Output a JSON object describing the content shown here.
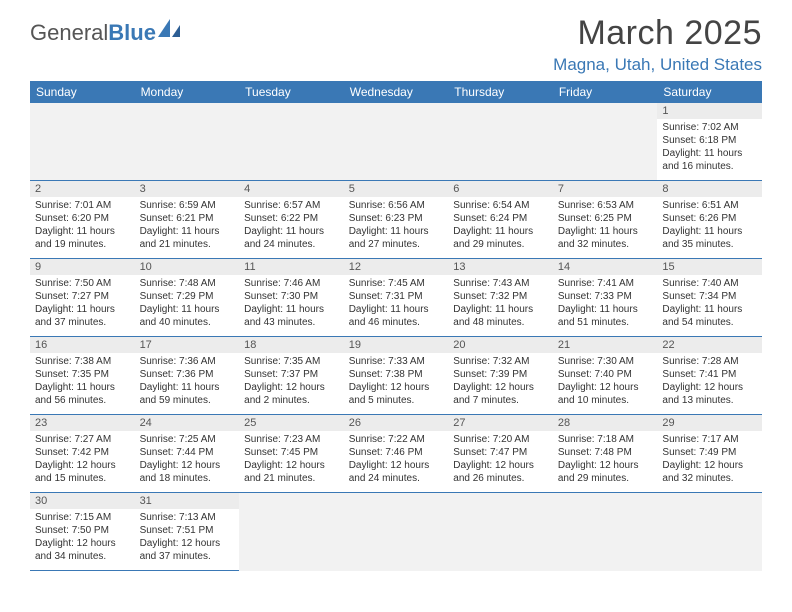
{
  "logo": {
    "text_general": "General",
    "text_blue": "Blue"
  },
  "title": "March 2025",
  "location": "Magna, Utah, United States",
  "weekdays": [
    "Sunday",
    "Monday",
    "Tuesday",
    "Wednesday",
    "Thursday",
    "Friday",
    "Saturday"
  ],
  "colors": {
    "header_bar": "#3a78b5",
    "header_text": "#ffffff",
    "cell_border": "#3a78b5",
    "daynum_bg": "#ececec",
    "blank_bg": "#f2f2f2",
    "body_text": "#333333",
    "title_text": "#444444",
    "location_text": "#3a78b5"
  },
  "typography": {
    "month_title_pt": 34,
    "location_pt": 17,
    "weekday_pt": 12,
    "daynum_pt": 11,
    "cell_pt": 10
  },
  "layout": {
    "columns": 7,
    "rows": 6,
    "leading_blank": 6
  },
  "days": [
    {
      "n": 1,
      "sr": "7:02 AM",
      "ss": "6:18 PM",
      "dh": 11,
      "dm": 16
    },
    {
      "n": 2,
      "sr": "7:01 AM",
      "ss": "6:20 PM",
      "dh": 11,
      "dm": 19
    },
    {
      "n": 3,
      "sr": "6:59 AM",
      "ss": "6:21 PM",
      "dh": 11,
      "dm": 21
    },
    {
      "n": 4,
      "sr": "6:57 AM",
      "ss": "6:22 PM",
      "dh": 11,
      "dm": 24
    },
    {
      "n": 5,
      "sr": "6:56 AM",
      "ss": "6:23 PM",
      "dh": 11,
      "dm": 27
    },
    {
      "n": 6,
      "sr": "6:54 AM",
      "ss": "6:24 PM",
      "dh": 11,
      "dm": 29
    },
    {
      "n": 7,
      "sr": "6:53 AM",
      "ss": "6:25 PM",
      "dh": 11,
      "dm": 32
    },
    {
      "n": 8,
      "sr": "6:51 AM",
      "ss": "6:26 PM",
      "dh": 11,
      "dm": 35
    },
    {
      "n": 9,
      "sr": "7:50 AM",
      "ss": "7:27 PM",
      "dh": 11,
      "dm": 37
    },
    {
      "n": 10,
      "sr": "7:48 AM",
      "ss": "7:29 PM",
      "dh": 11,
      "dm": 40
    },
    {
      "n": 11,
      "sr": "7:46 AM",
      "ss": "7:30 PM",
      "dh": 11,
      "dm": 43
    },
    {
      "n": 12,
      "sr": "7:45 AM",
      "ss": "7:31 PM",
      "dh": 11,
      "dm": 46
    },
    {
      "n": 13,
      "sr": "7:43 AM",
      "ss": "7:32 PM",
      "dh": 11,
      "dm": 48
    },
    {
      "n": 14,
      "sr": "7:41 AM",
      "ss": "7:33 PM",
      "dh": 11,
      "dm": 51
    },
    {
      "n": 15,
      "sr": "7:40 AM",
      "ss": "7:34 PM",
      "dh": 11,
      "dm": 54
    },
    {
      "n": 16,
      "sr": "7:38 AM",
      "ss": "7:35 PM",
      "dh": 11,
      "dm": 56
    },
    {
      "n": 17,
      "sr": "7:36 AM",
      "ss": "7:36 PM",
      "dh": 11,
      "dm": 59
    },
    {
      "n": 18,
      "sr": "7:35 AM",
      "ss": "7:37 PM",
      "dh": 12,
      "dm": 2
    },
    {
      "n": 19,
      "sr": "7:33 AM",
      "ss": "7:38 PM",
      "dh": 12,
      "dm": 5
    },
    {
      "n": 20,
      "sr": "7:32 AM",
      "ss": "7:39 PM",
      "dh": 12,
      "dm": 7
    },
    {
      "n": 21,
      "sr": "7:30 AM",
      "ss": "7:40 PM",
      "dh": 12,
      "dm": 10
    },
    {
      "n": 22,
      "sr": "7:28 AM",
      "ss": "7:41 PM",
      "dh": 12,
      "dm": 13
    },
    {
      "n": 23,
      "sr": "7:27 AM",
      "ss": "7:42 PM",
      "dh": 12,
      "dm": 15
    },
    {
      "n": 24,
      "sr": "7:25 AM",
      "ss": "7:44 PM",
      "dh": 12,
      "dm": 18
    },
    {
      "n": 25,
      "sr": "7:23 AM",
      "ss": "7:45 PM",
      "dh": 12,
      "dm": 21
    },
    {
      "n": 26,
      "sr": "7:22 AM",
      "ss": "7:46 PM",
      "dh": 12,
      "dm": 24
    },
    {
      "n": 27,
      "sr": "7:20 AM",
      "ss": "7:47 PM",
      "dh": 12,
      "dm": 26
    },
    {
      "n": 28,
      "sr": "7:18 AM",
      "ss": "7:48 PM",
      "dh": 12,
      "dm": 29
    },
    {
      "n": 29,
      "sr": "7:17 AM",
      "ss": "7:49 PM",
      "dh": 12,
      "dm": 32
    },
    {
      "n": 30,
      "sr": "7:15 AM",
      "ss": "7:50 PM",
      "dh": 12,
      "dm": 34
    },
    {
      "n": 31,
      "sr": "7:13 AM",
      "ss": "7:51 PM",
      "dh": 12,
      "dm": 37
    }
  ],
  "labels": {
    "sunrise": "Sunrise:",
    "sunset": "Sunset:",
    "daylight": "Daylight:",
    "hours": "hours",
    "and": "and",
    "minutes": "minutes."
  }
}
